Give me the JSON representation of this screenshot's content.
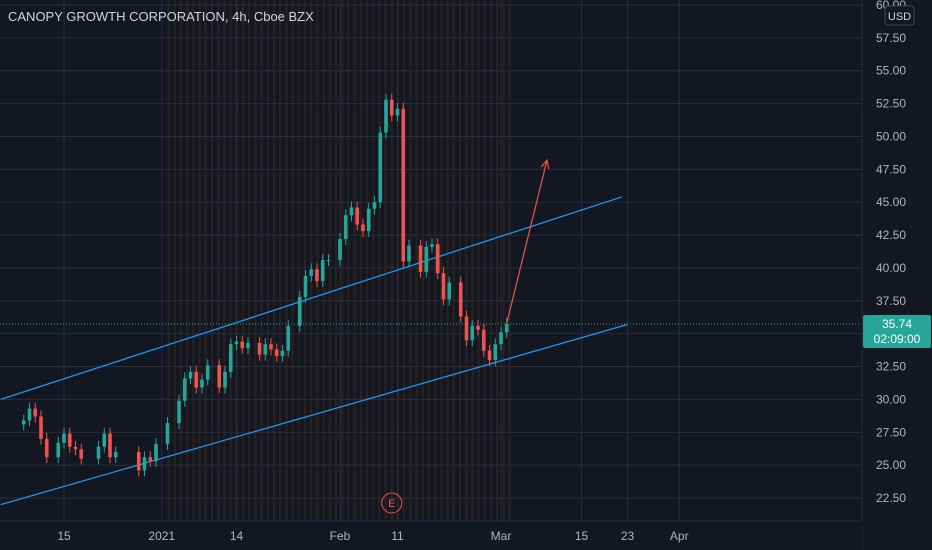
{
  "header": {
    "title": "CANOPY GROWTH CORPORATION, 4h, Cboe BZX",
    "currency": "USD"
  },
  "price_tag": {
    "price": "35.74",
    "countdown": "02:09:00"
  },
  "event_marker": {
    "label": "E"
  },
  "colors": {
    "background": "#131722",
    "up": "#26a69a",
    "down": "#ef5350",
    "channel": "#2196f3",
    "projection_arrow": "#ef5350",
    "session_stripe": "#3a2a1e"
  },
  "chart_data": {
    "type": "candlestick",
    "title": "CANOPY GROWTH CORPORATION, 4h, Cboe BZX",
    "ylabel": "USD",
    "ylim": [
      21.5,
      60.0
    ],
    "y_ticks": [
      "22.50",
      "25.00",
      "27.50",
      "30.00",
      "32.50",
      "35.00",
      "37.50",
      "40.00",
      "42.50",
      "45.00",
      "47.50",
      "50.00",
      "52.50",
      "55.00",
      "57.50",
      "60.00"
    ],
    "x_ticks": [
      {
        "label": "15",
        "date": "2020-12-15"
      },
      {
        "label": "2021",
        "date": "2021-01-01"
      },
      {
        "label": "14",
        "date": "2021-01-14"
      },
      {
        "label": "Feb",
        "date": "2021-02-01"
      },
      {
        "label": "11",
        "date": "2021-02-11"
      },
      {
        "label": "Mar",
        "date": "2021-03-01"
      },
      {
        "label": "15",
        "date": "2021-03-15"
      },
      {
        "label": "23",
        "date": "2021-03-23"
      },
      {
        "label": "Apr",
        "date": "2021-04-01"
      }
    ],
    "last_price": 35.74,
    "series": [
      {
        "points": [
          [
            "2020-12-08",
            28.4
          ],
          [
            "2020-12-09",
            29.3
          ],
          [
            "2020-12-10",
            28.7
          ],
          [
            "2020-12-11",
            27.0
          ],
          [
            "2020-12-12",
            25.6
          ],
          [
            "2020-12-14",
            26.7
          ],
          [
            "2020-12-15",
            27.4
          ],
          [
            "2020-12-16",
            26.4
          ],
          [
            "2020-12-17",
            26.2
          ],
          [
            "2020-12-18",
            25.5
          ],
          [
            "2020-12-21",
            26.4
          ],
          [
            "2020-12-22",
            27.4
          ],
          [
            "2020-12-23",
            25.6
          ],
          [
            "2020-12-24",
            26.0
          ],
          [
            "2020-12-28",
            24.6
          ],
          [
            "2020-12-29",
            25.6
          ],
          [
            "2020-12-30",
            25.3
          ],
          [
            "2020-12-31",
            26.6
          ],
          [
            "2021-01-02",
            28.2
          ],
          [
            "2021-01-04",
            29.9
          ],
          [
            "2021-01-05",
            31.6
          ],
          [
            "2021-01-06",
            32.1
          ],
          [
            "2021-01-07",
            30.9
          ],
          [
            "2021-01-08",
            31.5
          ],
          [
            "2021-01-09",
            32.6
          ],
          [
            "2021-01-11",
            30.9
          ],
          [
            "2021-01-12",
            32.1
          ],
          [
            "2021-01-13",
            34.2
          ],
          [
            "2021-01-14",
            34.4
          ],
          [
            "2021-01-15",
            33.9
          ],
          [
            "2021-01-16",
            34.3
          ],
          [
            "2021-01-18",
            33.4
          ],
          [
            "2021-01-19",
            34.2
          ],
          [
            "2021-01-20",
            33.8
          ],
          [
            "2021-01-21",
            33.3
          ],
          [
            "2021-01-22",
            33.7
          ],
          [
            "2021-01-23",
            35.6
          ],
          [
            "2021-01-25",
            37.8
          ],
          [
            "2021-01-26",
            39.4
          ],
          [
            "2021-01-27",
            39.9
          ],
          [
            "2021-01-28",
            39.0
          ],
          [
            "2021-01-29",
            40.6
          ],
          [
            "2021-01-30",
            40.6
          ],
          [
            "2021-02-01",
            42.2
          ],
          [
            "2021-02-02",
            44.0
          ],
          [
            "2021-02-03",
            44.6
          ],
          [
            "2021-02-04",
            43.3
          ],
          [
            "2021-02-05",
            42.8
          ],
          [
            "2021-02-06",
            44.5
          ],
          [
            "2021-02-07",
            45.0
          ],
          [
            "2021-02-08",
            50.3
          ],
          [
            "2021-02-09",
            52.8
          ],
          [
            "2021-02-10",
            51.6
          ],
          [
            "2021-02-11",
            52.1
          ],
          [
            "2021-02-12",
            40.5
          ],
          [
            "2021-02-13",
            41.7
          ],
          [
            "2021-02-15",
            39.7
          ],
          [
            "2021-02-16",
            41.6
          ],
          [
            "2021-02-17",
            41.8
          ],
          [
            "2021-02-18",
            39.6
          ],
          [
            "2021-02-19",
            37.6
          ],
          [
            "2021-02-20",
            38.9
          ],
          [
            "2021-02-22",
            36.3
          ],
          [
            "2021-02-23",
            34.5
          ],
          [
            "2021-02-24",
            35.6
          ],
          [
            "2021-02-25",
            35.3
          ],
          [
            "2021-02-26",
            33.7
          ],
          [
            "2021-02-27",
            33.0
          ],
          [
            "2021-02-28",
            34.2
          ],
          [
            "2021-03-01",
            35.1
          ],
          [
            "2021-03-02",
            35.74
          ]
        ]
      }
    ],
    "channel_lines": [
      {
        "from": [
          "2020-12-04",
          30.0
        ],
        "to": [
          "2021-03-22",
          45.4
        ]
      },
      {
        "from": [
          "2020-12-04",
          22.0
        ],
        "to": [
          "2021-03-23",
          35.7
        ]
      }
    ],
    "projection_arrow": {
      "from": [
        "2021-03-02",
        35.8
      ],
      "to": [
        "2021-03-09",
        48.2
      ]
    }
  }
}
